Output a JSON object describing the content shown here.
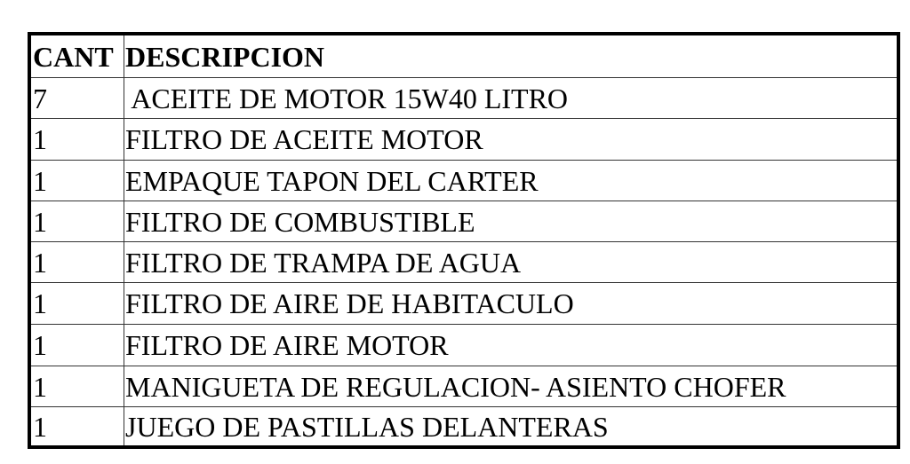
{
  "table": {
    "headers": [
      "CANT",
      "DESCRIPCION"
    ],
    "rows": [
      {
        "cant": "7",
        "descripcion": " ACEITE DE MOTOR 15W40 LITRO"
      },
      {
        "cant": "1",
        "descripcion": "FILTRO DE ACEITE MOTOR"
      },
      {
        "cant": "1",
        "descripcion": "EMPAQUE TAPON DEL CARTER"
      },
      {
        "cant": "1",
        "descripcion": "FILTRO DE COMBUSTIBLE"
      },
      {
        "cant": "1",
        "descripcion": "FILTRO DE TRAMPA DE AGUA"
      },
      {
        "cant": "1",
        "descripcion": "FILTRO DE AIRE DE HABITACULO"
      },
      {
        "cant": "1",
        "descripcion": "FILTRO DE AIRE MOTOR"
      },
      {
        "cant": "1",
        "descripcion": "MANIGUETA DE REGULACION- ASIENTO CHOFER"
      },
      {
        "cant": "1",
        "descripcion": "JUEGO DE PASTILLAS DELANTERAS"
      }
    ]
  }
}
